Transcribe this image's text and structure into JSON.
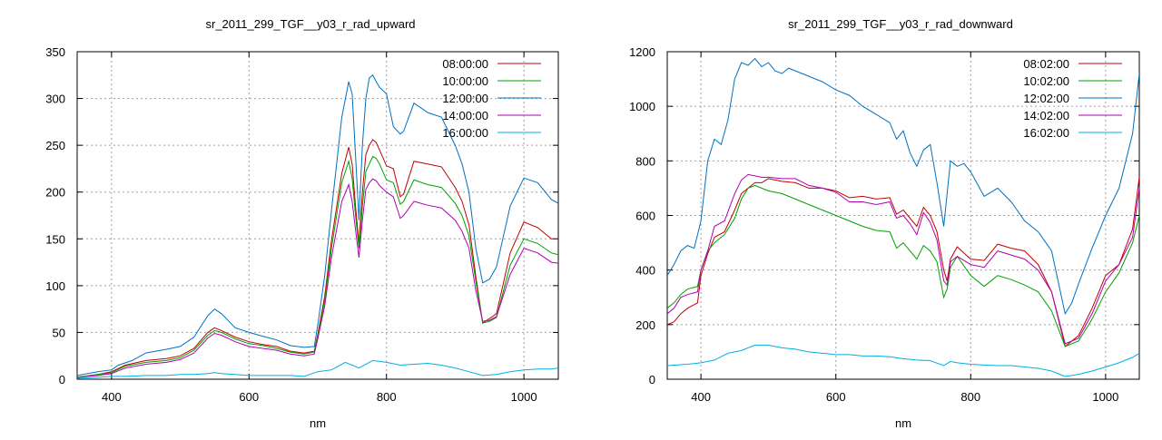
{
  "chart_data": [
    {
      "type": "line",
      "title": "sr_2011_299_TGF__y03_r_rad_upward",
      "xlabel": "nm",
      "ylabel": "",
      "xlim": [
        350,
        1050
      ],
      "ylim": [
        0,
        350
      ],
      "xticks": [
        400,
        600,
        800,
        1000
      ],
      "yticks": [
        0,
        50,
        100,
        150,
        200,
        250,
        300,
        350
      ],
      "grid": true,
      "legend_position": "top-right",
      "series": [
        {
          "name": "08:00:00",
          "color": "#c00000",
          "x": [
            350,
            380,
            400,
            420,
            450,
            480,
            500,
            520,
            540,
            550,
            560,
            580,
            600,
            620,
            640,
            660,
            680,
            695,
            700,
            710,
            720,
            735,
            745,
            750,
            755,
            760,
            765,
            770,
            775,
            780,
            785,
            790,
            800,
            810,
            820,
            825,
            840,
            860,
            880,
            900,
            910,
            920,
            930,
            940,
            950,
            960,
            980,
            1000,
            1020,
            1040,
            1050
          ],
          "y": [
            2,
            5,
            8,
            15,
            20,
            22,
            25,
            33,
            50,
            55,
            52,
            45,
            40,
            37,
            35,
            30,
            28,
            30,
            48,
            88,
            148,
            220,
            248,
            230,
            185,
            145,
            200,
            240,
            250,
            256,
            253,
            245,
            228,
            225,
            195,
            198,
            233,
            230,
            227,
            205,
            190,
            165,
            110,
            60,
            65,
            70,
            135,
            168,
            162,
            150,
            150
          ]
        },
        {
          "name": "10:00:00",
          "color": "#00a000",
          "x": [
            350,
            380,
            400,
            420,
            450,
            480,
            500,
            520,
            540,
            550,
            560,
            580,
            600,
            620,
            640,
            660,
            680,
            695,
            700,
            710,
            720,
            735,
            745,
            750,
            755,
            760,
            765,
            770,
            775,
            780,
            785,
            790,
            800,
            810,
            820,
            825,
            840,
            860,
            880,
            900,
            910,
            920,
            930,
            940,
            950,
            960,
            980,
            1000,
            1020,
            1040,
            1050
          ],
          "y": [
            2,
            5,
            7,
            14,
            18,
            20,
            23,
            31,
            47,
            52,
            50,
            43,
            38,
            36,
            33,
            29,
            27,
            29,
            46,
            84,
            140,
            210,
            233,
            215,
            175,
            140,
            185,
            222,
            230,
            238,
            236,
            230,
            213,
            210,
            187,
            190,
            213,
            208,
            205,
            188,
            175,
            153,
            105,
            60,
            62,
            66,
            122,
            150,
            145,
            135,
            133
          ]
        },
        {
          "name": "12:00:00",
          "color": "#0070c0",
          "x": [
            350,
            380,
            400,
            410,
            430,
            450,
            480,
            500,
            520,
            540,
            550,
            560,
            580,
            600,
            620,
            640,
            660,
            680,
            695,
            700,
            710,
            720,
            735,
            745,
            750,
            755,
            760,
            765,
            770,
            775,
            780,
            785,
            790,
            800,
            810,
            820,
            825,
            840,
            860,
            880,
            900,
            910,
            920,
            930,
            940,
            950,
            960,
            980,
            1000,
            1020,
            1040,
            1050
          ],
          "y": [
            4,
            8,
            10,
            15,
            20,
            28,
            32,
            35,
            45,
            68,
            75,
            70,
            55,
            50,
            46,
            42,
            36,
            34,
            35,
            58,
            110,
            180,
            280,
            318,
            305,
            240,
            170,
            250,
            300,
            322,
            325,
            318,
            312,
            305,
            270,
            262,
            265,
            295,
            285,
            280,
            250,
            230,
            200,
            140,
            103,
            107,
            120,
            185,
            215,
            210,
            192,
            188
          ]
        },
        {
          "name": "14:00:00",
          "color": "#b000b0",
          "x": [
            350,
            380,
            400,
            420,
            450,
            480,
            500,
            520,
            540,
            550,
            560,
            580,
            600,
            620,
            640,
            660,
            680,
            695,
            700,
            710,
            720,
            735,
            745,
            750,
            755,
            760,
            765,
            770,
            775,
            780,
            785,
            790,
            800,
            810,
            820,
            825,
            840,
            860,
            880,
            900,
            910,
            920,
            930,
            940,
            950,
            960,
            980,
            1000,
            1020,
            1040,
            1050
          ],
          "y": [
            2,
            4,
            6,
            12,
            16,
            18,
            21,
            28,
            44,
            49,
            47,
            40,
            35,
            33,
            31,
            27,
            25,
            27,
            43,
            78,
            130,
            190,
            208,
            190,
            160,
            130,
            170,
            203,
            210,
            214,
            212,
            207,
            200,
            195,
            172,
            175,
            190,
            186,
            183,
            170,
            158,
            140,
            95,
            62,
            63,
            67,
            112,
            140,
            135,
            125,
            124
          ]
        },
        {
          "name": "16:00:00",
          "color": "#00b0e0",
          "x": [
            350,
            380,
            400,
            420,
            450,
            480,
            500,
            520,
            540,
            550,
            560,
            580,
            600,
            620,
            640,
            660,
            680,
            700,
            720,
            740,
            760,
            780,
            800,
            820,
            840,
            860,
            880,
            900,
            920,
            940,
            960,
            980,
            1000,
            1020,
            1040,
            1050
          ],
          "y": [
            1,
            2,
            3,
            3,
            4,
            4,
            5,
            5,
            6,
            7,
            6,
            5,
            4,
            4,
            4,
            4,
            3,
            8,
            10,
            18,
            12,
            20,
            18,
            15,
            16,
            17,
            15,
            12,
            8,
            4,
            5,
            8,
            10,
            11,
            11,
            12
          ]
        }
      ]
    },
    {
      "type": "line",
      "title": "sr_2011_299_TGF__y03_r_rad_downward",
      "xlabel": "nm",
      "ylabel": "",
      "xlim": [
        350,
        1050
      ],
      "ylim": [
        0,
        1200
      ],
      "xticks": [
        400,
        600,
        800,
        1000
      ],
      "yticks": [
        0,
        200,
        400,
        600,
        800,
        1000,
        1200
      ],
      "grid": true,
      "legend_position": "top-right",
      "series": [
        {
          "name": "08:02:00",
          "color": "#c00000",
          "x": [
            350,
            360,
            370,
            380,
            395,
            400,
            410,
            420,
            435,
            450,
            460,
            470,
            480,
            490,
            500,
            520,
            540,
            560,
            580,
            600,
            620,
            640,
            660,
            680,
            690,
            700,
            710,
            720,
            730,
            740,
            750,
            760,
            765,
            770,
            780,
            800,
            820,
            840,
            860,
            880,
            900,
            920,
            940,
            960,
            980,
            1000,
            1020,
            1040,
            1050
          ],
          "y": [
            200,
            210,
            240,
            260,
            280,
            380,
            460,
            520,
            540,
            620,
            680,
            700,
            720,
            720,
            735,
            725,
            720,
            700,
            700,
            690,
            665,
            670,
            660,
            665,
            605,
            620,
            590,
            560,
            630,
            600,
            540,
            400,
            360,
            440,
            485,
            440,
            435,
            495,
            480,
            470,
            420,
            320,
            120,
            160,
            260,
            380,
            420,
            550,
            740
          ]
        },
        {
          "name": "10:02:00",
          "color": "#00a000",
          "x": [
            350,
            360,
            370,
            380,
            395,
            400,
            410,
            420,
            435,
            450,
            460,
            470,
            480,
            490,
            500,
            520,
            540,
            560,
            580,
            600,
            620,
            640,
            660,
            680,
            690,
            700,
            710,
            720,
            730,
            740,
            750,
            760,
            765,
            770,
            780,
            800,
            820,
            840,
            860,
            880,
            900,
            920,
            940,
            960,
            980,
            1000,
            1020,
            1040,
            1050
          ],
          "y": [
            260,
            280,
            310,
            330,
            340,
            400,
            470,
            500,
            530,
            590,
            660,
            700,
            710,
            700,
            690,
            680,
            660,
            640,
            620,
            600,
            580,
            560,
            545,
            540,
            480,
            500,
            470,
            440,
            490,
            470,
            430,
            300,
            330,
            410,
            450,
            380,
            340,
            380,
            365,
            345,
            320,
            250,
            120,
            140,
            220,
            320,
            390,
            500,
            600
          ]
        },
        {
          "name": "12:02:00",
          "color": "#0070c0",
          "x": [
            350,
            360,
            370,
            380,
            390,
            400,
            410,
            420,
            430,
            440,
            450,
            460,
            470,
            480,
            490,
            500,
            510,
            520,
            530,
            540,
            560,
            580,
            600,
            620,
            640,
            660,
            680,
            690,
            700,
            710,
            720,
            730,
            740,
            750,
            760,
            765,
            770,
            780,
            790,
            800,
            820,
            840,
            860,
            880,
            900,
            920,
            940,
            950,
            960,
            980,
            1000,
            1020,
            1040,
            1050
          ],
          "y": [
            380,
            420,
            470,
            490,
            480,
            580,
            800,
            880,
            860,
            950,
            1100,
            1160,
            1150,
            1175,
            1145,
            1160,
            1130,
            1120,
            1140,
            1130,
            1110,
            1090,
            1060,
            1040,
            1000,
            970,
            940,
            880,
            910,
            830,
            780,
            840,
            860,
            720,
            560,
            680,
            800,
            780,
            790,
            760,
            670,
            700,
            650,
            580,
            540,
            470,
            240,
            280,
            350,
            480,
            600,
            700,
            900,
            1120
          ]
        },
        {
          "name": "14:02:00",
          "color": "#b000b0",
          "x": [
            350,
            360,
            370,
            380,
            395,
            400,
            410,
            420,
            435,
            450,
            460,
            470,
            480,
            490,
            500,
            520,
            540,
            560,
            580,
            600,
            620,
            640,
            660,
            680,
            690,
            700,
            710,
            720,
            730,
            740,
            750,
            760,
            765,
            770,
            780,
            800,
            820,
            840,
            860,
            880,
            900,
            920,
            940,
            960,
            980,
            1000,
            1020,
            1040,
            1050
          ],
          "y": [
            240,
            260,
            300,
            310,
            320,
            400,
            470,
            560,
            580,
            680,
            730,
            750,
            745,
            740,
            740,
            735,
            735,
            710,
            700,
            685,
            650,
            650,
            640,
            650,
            590,
            600,
            570,
            530,
            610,
            575,
            510,
            360,
            345,
            430,
            450,
            420,
            410,
            470,
            455,
            440,
            400,
            320,
            130,
            150,
            240,
            360,
            420,
            520,
            700
          ]
        },
        {
          "name": "16:02:00",
          "color": "#00b0e0",
          "x": [
            350,
            380,
            400,
            420,
            440,
            460,
            480,
            500,
            520,
            540,
            560,
            580,
            600,
            620,
            640,
            660,
            680,
            700,
            720,
            740,
            760,
            770,
            780,
            800,
            820,
            840,
            860,
            880,
            900,
            920,
            940,
            960,
            980,
            1000,
            1020,
            1040,
            1050
          ],
          "y": [
            50,
            55,
            60,
            70,
            95,
            105,
            125,
            125,
            115,
            110,
            100,
            95,
            90,
            90,
            85,
            85,
            82,
            75,
            70,
            68,
            50,
            65,
            60,
            55,
            52,
            50,
            50,
            45,
            40,
            30,
            10,
            18,
            30,
            45,
            60,
            80,
            95
          ]
        }
      ]
    }
  ]
}
